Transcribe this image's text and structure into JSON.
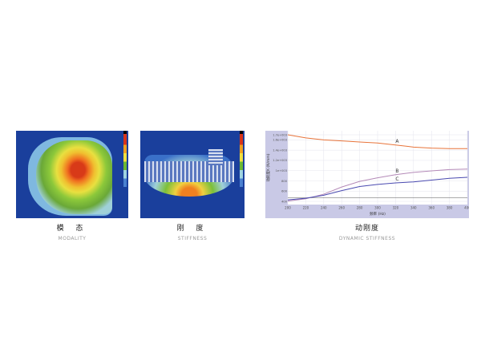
{
  "items": [
    {
      "title": "模 态",
      "subtitle": "MODALITY"
    },
    {
      "title": "刚 度",
      "subtitle": "STIFFNESS"
    },
    {
      "title": "动刚度",
      "subtitle": "DYNAMIC STIFFNESS"
    }
  ],
  "chart_data": {
    "type": "line",
    "xlabel": "频率 (Hz)",
    "ylabel": "动刚度K (N/mm)",
    "x": [
      200,
      220,
      240,
      260,
      280,
      300,
      320,
      340,
      360,
      380,
      400
    ],
    "xlim": [
      200,
      400
    ],
    "ylim": [
      400,
      1700
    ],
    "xticks": [
      "200",
      "220",
      "240",
      "260",
      "280",
      "300",
      "320",
      "340",
      "360",
      "380",
      "400"
    ],
    "yticks": [
      {
        "v": 1700,
        "l": "1.7e+003"
      },
      {
        "v": 1600,
        "l": "1.6e+003"
      },
      {
        "v": 1400,
        "l": "1.4e+003"
      },
      {
        "v": 1200,
        "l": "1.2e+003"
      },
      {
        "v": 1000,
        "l": "1e+003"
      },
      {
        "v": 800,
        "l": "800"
      },
      {
        "v": 600,
        "l": "600"
      },
      {
        "v": 400,
        "l": "400"
      }
    ],
    "grid": true,
    "series": [
      {
        "name": "A",
        "color": "#e8743a",
        "values": [
          1700,
          1640,
          1600,
          1580,
          1560,
          1540,
          1500,
          1460,
          1440,
          1430,
          1430
        ]
      },
      {
        "name": "B",
        "color": "#b48ab8",
        "values": [
          405,
          450,
          540,
          680,
          790,
          860,
          920,
          965,
          995,
          1020,
          1030
        ]
      },
      {
        "name": "C",
        "color": "#4a4ab0",
        "values": [
          430,
          460,
          520,
          610,
          690,
          730,
          760,
          780,
          815,
          850,
          870
        ]
      }
    ]
  }
}
